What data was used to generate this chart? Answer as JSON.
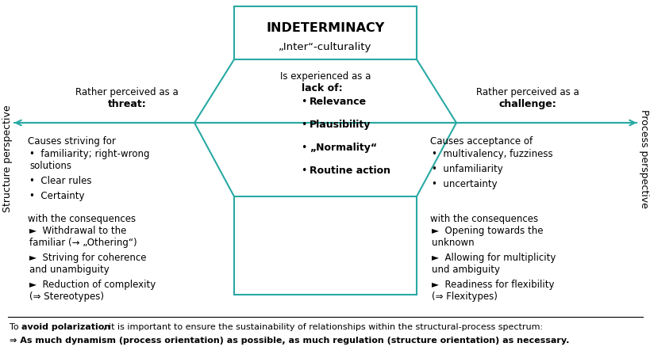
{
  "title": "INDETERMINACY",
  "subtitle": "„Inter“-culturality",
  "bg_color": "#ffffff",
  "teal": "#29a9a4",
  "black": "#000000",
  "fig_width": 8.2,
  "fig_height": 4.57,
  "dpi": 100,
  "left_label_top": "Rather perceived as a",
  "left_label_bold": "threat:",
  "left_causes_header": "Causes striving for",
  "left_causes_items": [
    "familiarity; right-wrong\nsolutions",
    "Clear rules",
    "Certainty"
  ],
  "left_consequences_header": "with the consequences",
  "left_consequences_items": [
    "Withdrawal to the\nfamiliar (→ „Othering“)",
    "Striving for coherence\nand unambiguity",
    "Reduction of complexity\n(⇒ Stereotypes)"
  ],
  "center_header": "Is experienced as a",
  "center_bold": "lack of:",
  "center_items": [
    "Relevance",
    "Plausibility",
    "„Normality“",
    "Routine action"
  ],
  "right_label_top": "Rather perceived as a",
  "right_label_bold": "challenge:",
  "right_causes_header": "Causes acceptance of",
  "right_causes_items": [
    "multivalency, fuzziness",
    "unfamiliarity",
    "uncertainty"
  ],
  "right_consequences_header": "with the consequences",
  "right_consequences_items": [
    "Opening towards the\nunknown",
    "Allowing for multiplicity\nund ambiguity",
    "Readiness for flexibility\n(⇒ Flexitypes)"
  ],
  "left_axis_label": "Structure perspective",
  "right_axis_label": "Process perspective",
  "footer_bold1": "avoid polarization",
  "footer_normal2": ", it is important to ensure the sustainability of relationships within the structural-process spectrum:",
  "footer_line2": "⇒ As much dynamism (process orientation) as possible, as much regulation (structure orientation) as necessary."
}
